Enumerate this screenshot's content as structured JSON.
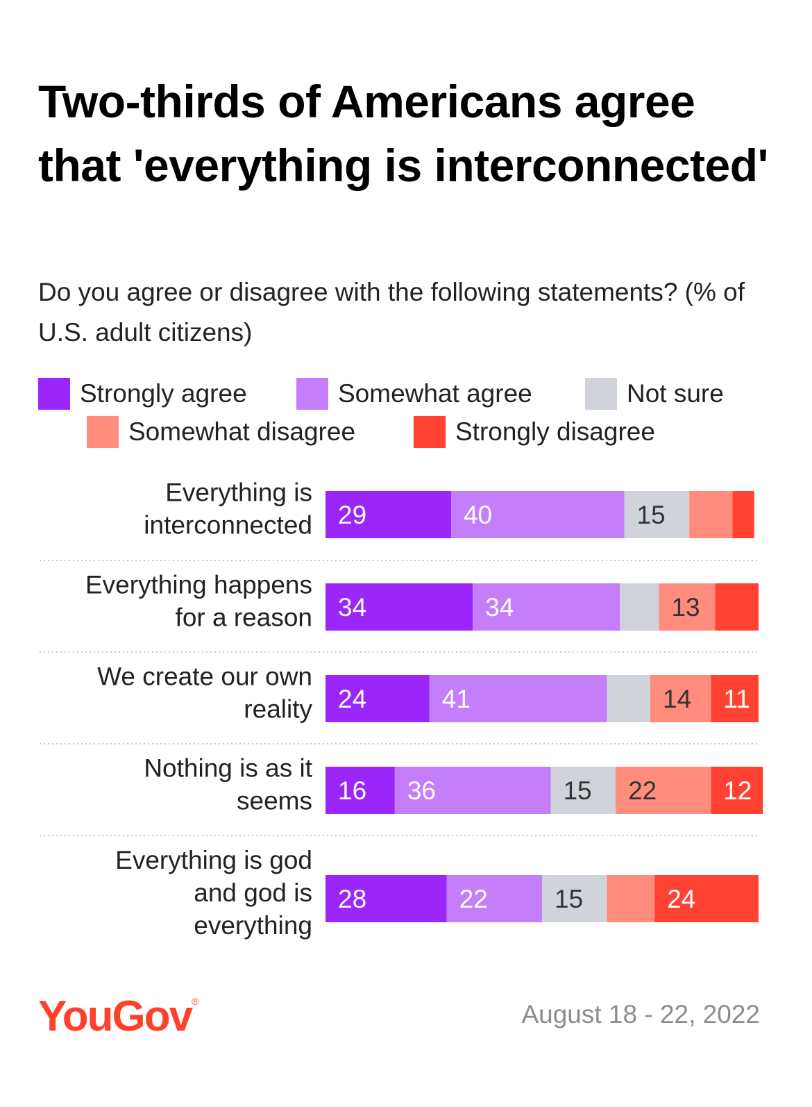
{
  "title": "Two-thirds of Americans agree that 'everything is interconnected'",
  "subtitle": "Do you agree or disagree with the following statements? (% of U.S. adult citizens)",
  "legend": [
    {
      "label": "Strongly agree",
      "color": "#9b26fa"
    },
    {
      "label": "Somewhat agree",
      "color": "#c47efa"
    },
    {
      "label": "Not sure",
      "color": "#d1d3db"
    },
    {
      "label": "Somewhat disagree",
      "color": "#ff8c7c"
    },
    {
      "label": "Strongly disagree",
      "color": "#ff4232"
    }
  ],
  "chart_data": {
    "type": "bar",
    "orientation": "horizontal",
    "stacked": true,
    "categories": [
      "Everything is interconnected",
      "Everything happens for a reason",
      "We create our own reality",
      "Nothing is as it seems",
      "Everything is god and god is everything"
    ],
    "category_lines": [
      [
        "Everything is",
        "interconnected"
      ],
      [
        "Everything happens",
        "for a reason"
      ],
      [
        "We create our own",
        "reality"
      ],
      [
        "Nothing is as it",
        "seems"
      ],
      [
        "Everything is god",
        "and god is",
        "everything"
      ]
    ],
    "series": [
      {
        "name": "Strongly agree",
        "color": "#9b26fa",
        "values": [
          29,
          34,
          24,
          16,
          28
        ],
        "labels": [
          "29",
          "34",
          "24",
          "16",
          "28"
        ]
      },
      {
        "name": "Somewhat agree",
        "color": "#c47efa",
        "values": [
          40,
          34,
          41,
          36,
          22
        ],
        "labels": [
          "40",
          "34",
          "41",
          "36",
          "22"
        ]
      },
      {
        "name": "Not sure",
        "color": "#d1d3db",
        "values": [
          15,
          9,
          10,
          15,
          15
        ],
        "labels": [
          "15",
          "",
          "",
          "15",
          "15"
        ]
      },
      {
        "name": "Somewhat disagree",
        "color": "#ff8c7c",
        "values": [
          10,
          13,
          14,
          22,
          11
        ],
        "labels": [
          "",
          "13",
          "14",
          "22",
          ""
        ]
      },
      {
        "name": "Strongly disagree",
        "color": "#ff4232",
        "values": [
          5,
          10,
          11,
          12,
          24
        ],
        "labels": [
          "",
          "",
          "11",
          "12",
          "24"
        ]
      }
    ],
    "xlim": [
      0,
      100
    ]
  },
  "footer": {
    "brand": "YouGov",
    "brand_mark": "®",
    "brand_color": "#ff412c",
    "date": "August 18 - 22, 2022"
  }
}
